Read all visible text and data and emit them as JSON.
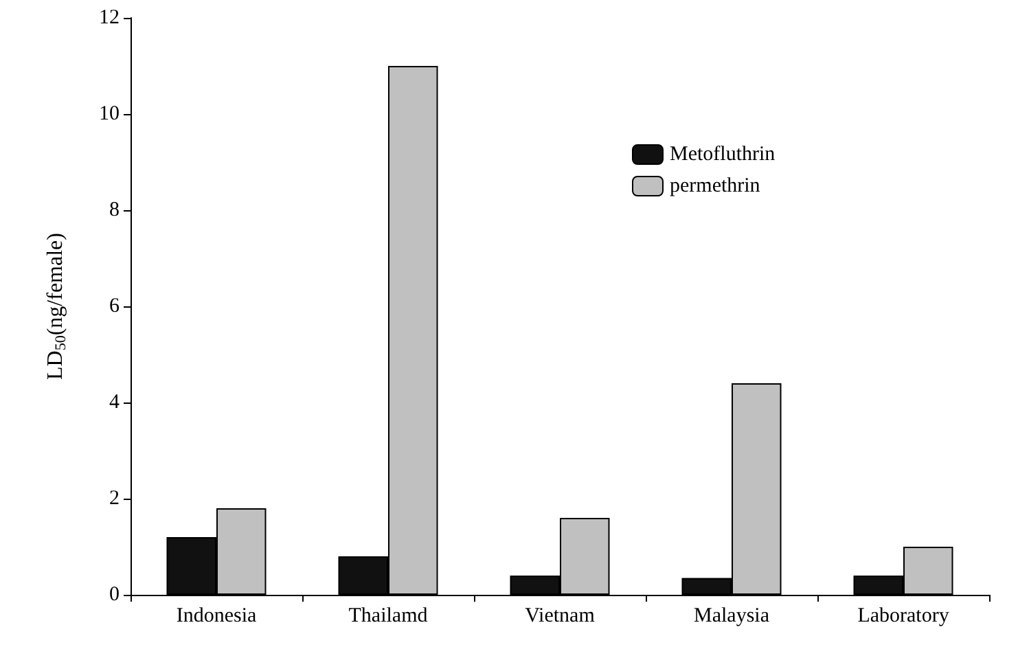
{
  "chart_data": {
    "type": "bar",
    "ylabel": "LD$_{50}$(ng/female)",
    "categories": [
      "Indonesia",
      "Thailamd",
      "Vietnam",
      "Malaysia",
      "Laboratory"
    ],
    "series": [
      {
        "name": "Metofluthrin",
        "color": "#111111",
        "values": [
          1.2,
          0.8,
          0.4,
          0.35,
          0.4
        ]
      },
      {
        "name": "permethrin",
        "color": "#c0c0c0",
        "values": [
          1.8,
          11,
          1.6,
          4.4,
          1.0
        ]
      }
    ],
    "ylim": [
      0,
      12
    ],
    "yticks": [
      0,
      2,
      4,
      6,
      8,
      10,
      12
    ],
    "grid": false,
    "legend": "top right"
  }
}
